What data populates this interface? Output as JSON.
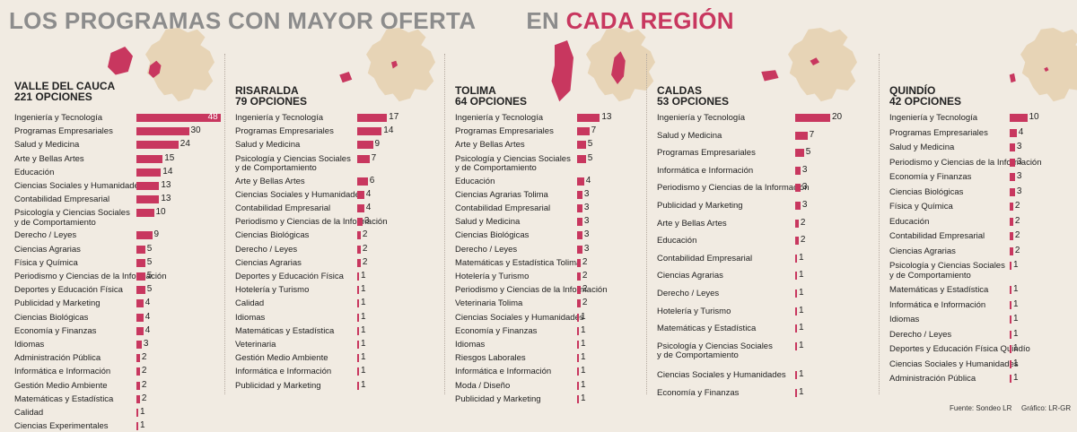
{
  "title": {
    "part1": "LOS PROGRAMAS CON MAYOR OFERTA",
    "part2": "EN",
    "part3": "CADA REGIÓN"
  },
  "colors": {
    "bar": "#c8375f",
    "map": "#e7d4b6",
    "title_gray": "#8c8c8c",
    "background": "#f1ebe2"
  },
  "chart_data": [
    {
      "type": "bar",
      "region": "VALLE DEL CAUCA",
      "total": "221 OPCIONES",
      "categories": [
        "Ingeniería y Tecnología",
        "Programas Empresariales",
        "Salud y Medicina",
        "Arte y Bellas Artes",
        "Educación",
        "Ciencias Sociales y Humanidades",
        "Contabilidad Empresarial",
        "Psicología y Ciencias Sociales\ny de Comportamiento",
        "Derecho / Leyes",
        "Ciencias Agrarias",
        "Física y Química",
        "Periodismo y Ciencias de la Información",
        "Deportes y Educación Física",
        "Publicidad y Marketing",
        "Ciencias Biológicas",
        "Economía y Finanzas",
        "Idiomas",
        "Administración Pública",
        "Informática e Información",
        "Gestión Medio Ambiente",
        "Matemáticas y Estadística",
        "Calidad",
        "Ciencias Experimentales"
      ],
      "values": [
        48,
        30,
        24,
        15,
        14,
        13,
        13,
        10,
        9,
        5,
        5,
        5,
        5,
        4,
        4,
        4,
        3,
        2,
        2,
        2,
        2,
        1,
        1
      ]
    },
    {
      "type": "bar",
      "region": "RISARALDA",
      "total": "79 OPCIONES",
      "categories": [
        "Ingeniería y Tecnología",
        "Programas Empresariales",
        "Salud y Medicina",
        "Psicología y Ciencias Sociales\ny de Comportamiento",
        "Arte y Bellas Artes",
        "Ciencias Sociales y Humanidades",
        "Contabilidad Empresarial",
        "Periodismo y Ciencias de la Información",
        "Ciencias Biológicas",
        "Derecho / Leyes",
        "Ciencias Agrarias",
        "Deportes y Educación Física",
        "Hotelería y Turismo",
        "Calidad",
        "Idiomas",
        "Matemáticas y Estadística",
        "Veterinaria",
        "Gestión Medio Ambiente",
        "Informática e Información",
        "Publicidad y Marketing"
      ],
      "values": [
        17,
        14,
        9,
        7,
        6,
        4,
        4,
        3,
        2,
        2,
        2,
        1,
        1,
        1,
        1,
        1,
        1,
        1,
        1,
        1
      ]
    },
    {
      "type": "bar",
      "region": "TOLIMA",
      "total": "64 OPCIONES",
      "categories": [
        "Ingeniería y Tecnología",
        "Programas Empresariales",
        "Arte y Bellas Artes",
        "Psicología y Ciencias Sociales\ny de Comportamiento",
        "Educación",
        "Ciencias Agrarias Tolima",
        "Contabilidad Empresarial",
        "Salud y Medicina",
        "Ciencias Biológicas",
        "Derecho / Leyes",
        "Matemáticas y Estadística Tolima",
        "Hotelería y Turismo",
        "Periodismo y Ciencias de la Información",
        "Veterinaria Tolima",
        "Ciencias Sociales y Humanidades",
        "Economía y Finanzas",
        "Idiomas",
        "Riesgos Laborales",
        "Informática e Información",
        "Moda / Diseño",
        "Publicidad y Marketing"
      ],
      "values": [
        13,
        7,
        5,
        5,
        4,
        3,
        3,
        3,
        3,
        3,
        2,
        2,
        2,
        2,
        1,
        1,
        1,
        1,
        1,
        1,
        1
      ]
    },
    {
      "type": "bar",
      "region": "CALDAS",
      "total": "53 OPCIONES",
      "categories": [
        "Ingeniería y Tecnología",
        "Salud y Medicina",
        "Programas Empresariales",
        "Informática e Información",
        "Periodismo y Ciencias de la Información",
        "Publicidad y Marketing",
        "Arte y Bellas Artes",
        "Educación",
        "Contabilidad Empresarial",
        "Ciencias Agrarias",
        "Derecho / Leyes",
        "Hotelería y Turismo",
        "Matemáticas y Estadística",
        "Psicología y Ciencias Sociales\ny de Comportamiento",
        "Ciencias Sociales y Humanidades",
        "Economía y Finanzas"
      ],
      "values": [
        20,
        7,
        5,
        3,
        3,
        3,
        2,
        2,
        1,
        1,
        1,
        1,
        1,
        1,
        1,
        1
      ]
    },
    {
      "type": "bar",
      "region": "QUINDÍO",
      "total": "42 OPCIONES",
      "categories": [
        "Ingeniería y Tecnología",
        "Programas Empresariales",
        "Salud y Medicina",
        "Periodismo y Ciencias de la Información",
        "Economía y Finanzas",
        "Ciencias Biológicas",
        "Física y Química",
        "Educación",
        "Contabilidad Empresarial",
        "Ciencias Agrarias",
        "Psicología y Ciencias Sociales\ny de Comportamiento",
        "Matemáticas y Estadística",
        "Informática e Información",
        "Idiomas",
        "Derecho / Leyes",
        "Deportes y Educación Física Quindío",
        "Ciencias Sociales y Humanidades",
        "Administración Pública"
      ],
      "values": [
        10,
        4,
        3,
        3,
        3,
        3,
        2,
        2,
        2,
        2,
        1,
        1,
        1,
        1,
        1,
        1,
        1,
        1
      ]
    }
  ],
  "footer": {
    "source": "Fuente: Sondeo LR",
    "credit": "Gráfico: LR-GR"
  }
}
